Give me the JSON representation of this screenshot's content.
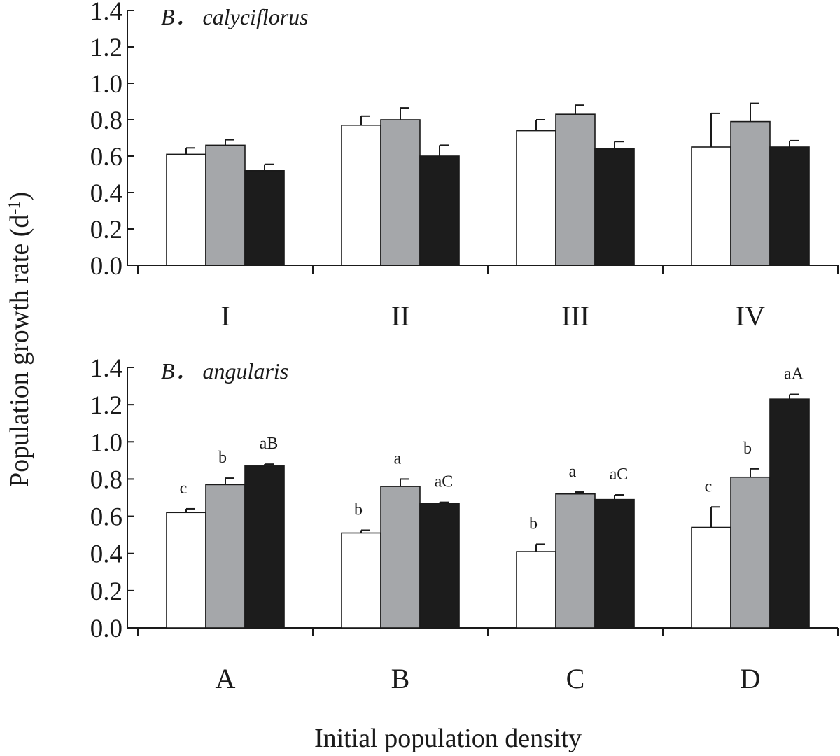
{
  "figure": {
    "ylabel": "Population growth rate (d",
    "ylabel_sup": "-1",
    "ylabel_close": ")",
    "xlabel": "Initial population density"
  },
  "chart_data": [
    {
      "type": "bar",
      "title": "B． calyciflorus",
      "categories": [
        "I",
        "II",
        "III",
        "IV"
      ],
      "ylim": [
        0,
        1.4
      ],
      "yticks": [
        "0.0",
        "0.2",
        "0.4",
        "0.6",
        "0.8",
        "1.0",
        "1.2",
        "1.4"
      ],
      "colors": [
        "#ffffff",
        "#a5a7aa",
        "#1c1c1c"
      ],
      "series": [
        {
          "values": [
            0.61,
            0.77,
            0.74,
            0.65
          ],
          "errors": [
            0.035,
            0.05,
            0.06,
            0.185
          ],
          "labels": [
            "",
            "",
            "",
            ""
          ]
        },
        {
          "values": [
            0.66,
            0.8,
            0.83,
            0.79
          ],
          "errors": [
            0.03,
            0.065,
            0.05,
            0.1
          ],
          "labels": [
            "",
            "",
            "",
            ""
          ]
        },
        {
          "values": [
            0.52,
            0.6,
            0.64,
            0.65
          ],
          "errors": [
            0.035,
            0.06,
            0.04,
            0.035
          ],
          "labels": [
            "",
            "",
            "",
            ""
          ]
        }
      ]
    },
    {
      "type": "bar",
      "title": "B． angularis",
      "categories": [
        "A",
        "B",
        "C",
        "D"
      ],
      "ylim": [
        0,
        1.4
      ],
      "yticks": [
        "0.0",
        "0.2",
        "0.4",
        "0.6",
        "0.8",
        "1.0",
        "1.2",
        "1.4"
      ],
      "colors": [
        "#ffffff",
        "#a5a7aa",
        "#1c1c1c"
      ],
      "series": [
        {
          "values": [
            0.62,
            0.51,
            0.41,
            0.54
          ],
          "errors": [
            0.02,
            0.015,
            0.04,
            0.11
          ],
          "labels": [
            "c",
            "b",
            "b",
            "c"
          ]
        },
        {
          "values": [
            0.77,
            0.76,
            0.72,
            0.81
          ],
          "errors": [
            0.035,
            0.04,
            0.01,
            0.045
          ],
          "labels": [
            "b",
            "a",
            "a",
            "b"
          ]
        },
        {
          "values": [
            0.87,
            0.67,
            0.69,
            1.23
          ],
          "errors": [
            0.01,
            0.005,
            0.025,
            0.025
          ],
          "labels": [
            "aB",
            "aC",
            "aC",
            "aA"
          ]
        }
      ]
    }
  ]
}
